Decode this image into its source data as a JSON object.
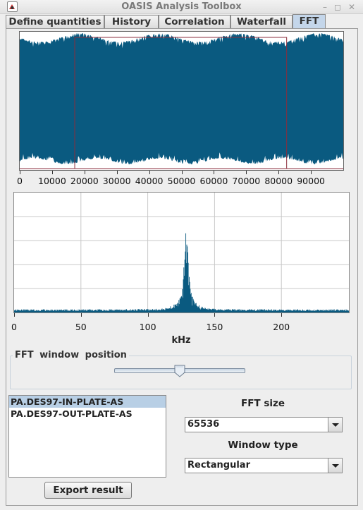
{
  "window": {
    "title": "OASIS Analysis Toolbox"
  },
  "tabs": [
    {
      "label": "Define quantities",
      "active": false
    },
    {
      "label": "History",
      "active": false
    },
    {
      "label": "Correlation",
      "active": false
    },
    {
      "label": "Waterfall",
      "active": false
    },
    {
      "label": "FFT",
      "active": true
    }
  ],
  "waveform": {
    "color": "#0a5a80",
    "x_ticks": [
      "0",
      "10000",
      "20000",
      "30000",
      "40000",
      "50000",
      "60000",
      "70000",
      "80000",
      "90000"
    ],
    "x_range": [
      0,
      99999
    ],
    "fft_window": {
      "start": 17000,
      "end": 82500,
      "color": "#8b2d3c"
    }
  },
  "chart_data": {
    "type": "line",
    "xlabel": "kHz",
    "x_ticks": [
      "0",
      "50",
      "100",
      "150",
      "200"
    ],
    "xlim": [
      0,
      250
    ],
    "grid": true,
    "color": "#0a5a80",
    "peak_khz": 129
  },
  "fft_panel": {
    "legend": "FFT window position",
    "slider_value": 0.5
  },
  "signals": [
    {
      "name": "PA.DES97-IN-PLATE-AS",
      "selected": true
    },
    {
      "name": "PA.DES97-OUT-PLATE-AS",
      "selected": false
    }
  ],
  "export_label": "Export result",
  "fft_size": {
    "label": "FFT size",
    "value": "65536"
  },
  "window_type": {
    "label": "Window type",
    "value": "Rectangular"
  }
}
